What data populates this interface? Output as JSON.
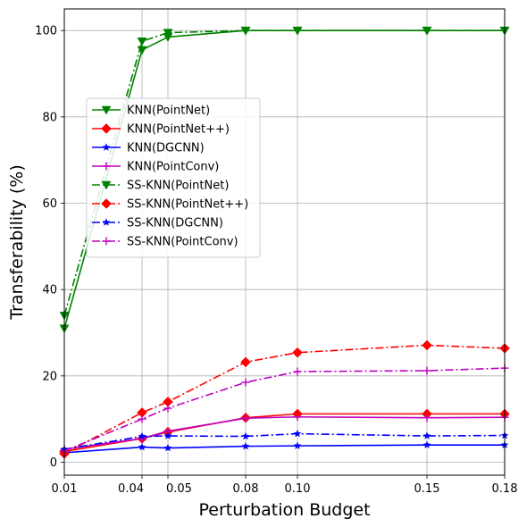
{
  "chart_data": {
    "type": "line",
    "xlabel": "Perturbation Budget",
    "ylabel": "Transferability (%)",
    "x": [
      0.01,
      0.04,
      0.05,
      0.08,
      0.1,
      0.15,
      0.18
    ],
    "x_tick_labels": [
      "0.01",
      "0.04",
      "0.05",
      "0.08",
      "0.10",
      "0.15",
      "0.18"
    ],
    "y_ticks": [
      0,
      20,
      40,
      60,
      80,
      100
    ],
    "xlim": [
      0.01,
      0.18
    ],
    "ylim": [
      -3,
      105
    ],
    "grid": true,
    "legend_position": "center-left",
    "series": [
      {
        "name": "KNN(PointNet)",
        "color": "#008000",
        "linestyle": "solid",
        "marker": "triangle-down",
        "values": [
          31,
          95.5,
          98.5,
          100,
          100,
          100,
          100
        ]
      },
      {
        "name": "KNN(PointNet++)",
        "color": "#ff0000",
        "linestyle": "solid",
        "marker": "diamond",
        "values": [
          2.5,
          5.5,
          7,
          10.3,
          11.2,
          11.2,
          11.2
        ]
      },
      {
        "name": "KNN(DGCNN)",
        "color": "#0000ff",
        "linestyle": "solid",
        "marker": "star",
        "values": [
          2.2,
          3.5,
          3.3,
          3.7,
          3.8,
          4.0,
          4.0
        ]
      },
      {
        "name": "KNN(PointConv)",
        "color": "#bf00bf",
        "linestyle": "solid",
        "marker": "plus",
        "values": [
          3.0,
          5.5,
          7.2,
          10.2,
          10.5,
          10.3,
          10.4
        ]
      },
      {
        "name": "SS-KNN(PointNet)",
        "color": "#008000",
        "linestyle": "dashdot",
        "marker": "triangle-down",
        "values": [
          34,
          97.5,
          99.5,
          100,
          100,
          100,
          100
        ]
      },
      {
        "name": "SS-KNN(PointNet++)",
        "color": "#ff0000",
        "linestyle": "dashdot",
        "marker": "diamond",
        "values": [
          2.0,
          11.5,
          14.0,
          23.2,
          25.4,
          27.1,
          26.4
        ]
      },
      {
        "name": "SS-KNN(DGCNN)",
        "color": "#0000ff",
        "linestyle": "dashdot",
        "marker": "star",
        "values": [
          3.0,
          6.0,
          6.1,
          6.0,
          6.6,
          6.1,
          6.2
        ]
      },
      {
        "name": "SS-KNN(PointConv)",
        "color": "#bf00bf",
        "linestyle": "dashdot",
        "marker": "plus",
        "values": [
          2.6,
          10.0,
          12.5,
          18.5,
          21.0,
          21.2,
          21.8
        ]
      }
    ]
  }
}
